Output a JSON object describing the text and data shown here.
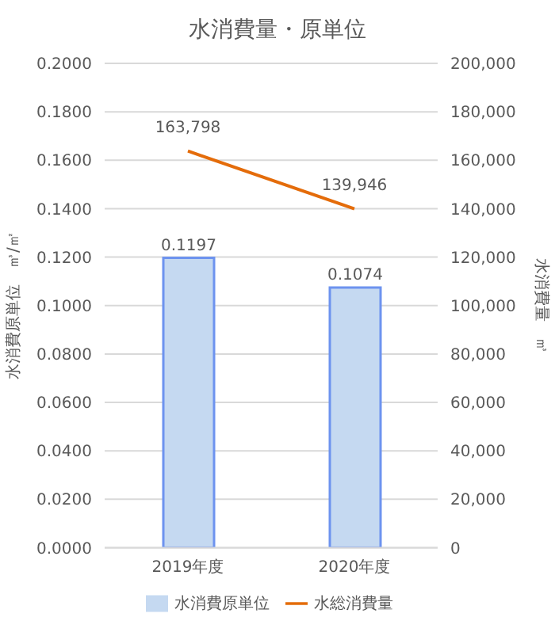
{
  "chart_data": {
    "type": "bar",
    "title": "水消費量・原単位",
    "ylabel": "水消費原単位　㎥/㎡",
    "y2label": "水消費量　㎥",
    "categories": [
      "2019年度",
      "2020年度"
    ],
    "series": [
      {
        "name": "水消費原単位",
        "color": "#c5d9f1",
        "values": [
          0.1197,
          0.1074
        ]
      },
      {
        "name": "水総消費量",
        "type": "line",
        "axis": "y2",
        "color": "#e46c0a",
        "values": [
          163798,
          139946
        ],
        "value_labels": [
          "163,798",
          "139,946"
        ]
      }
    ],
    "data_labels": true,
    "ylim": [
      0,
      0.2
    ],
    "yticks": [
      {
        "value": 0,
        "label": "0.0000"
      },
      {
        "value": 0.02,
        "label": "0.0200"
      },
      {
        "value": 0.04,
        "label": "0.0400"
      },
      {
        "value": 0.06,
        "label": "0.0600"
      },
      {
        "value": 0.08,
        "label": "0.0800"
      },
      {
        "value": 0.1,
        "label": "0.1000"
      },
      {
        "value": 0.12,
        "label": "0.1200"
      },
      {
        "value": 0.14,
        "label": "0.1400"
      },
      {
        "value": 0.16,
        "label": "0.1600"
      },
      {
        "value": 0.18,
        "label": "0.1800"
      },
      {
        "value": 0.2,
        "label": "0.2000"
      }
    ],
    "y2lim": [
      0,
      200000
    ],
    "y2ticks": [
      0,
      {
        "value": 20000,
        "label": "20,000"
      },
      {
        "value": 40000,
        "label": "40,000"
      },
      {
        "value": 60000,
        "label": "60,000"
      },
      {
        "value": 80000,
        "label": "80,000"
      },
      {
        "value": 100000,
        "label": "100,000"
      },
      {
        "value": 120000,
        "label": "120,000"
      },
      {
        "value": 140000,
        "label": "140,000"
      },
      {
        "value": 160000,
        "label": "160,000"
      },
      {
        "value": 180000,
        "label": "180,000"
      },
      {
        "value": 200000,
        "label": "200,000"
      }
    ],
    "grid": "y",
    "legend": "bottom",
    "marker": "none",
    "line_style": "solid"
  }
}
